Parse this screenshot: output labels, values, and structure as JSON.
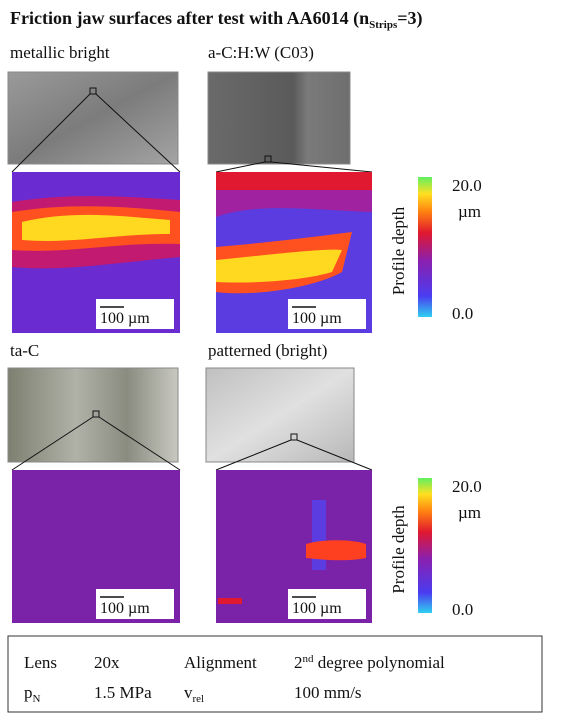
{
  "title": {
    "main": "Friction jaw surfaces after test with AA6014 (n",
    "sub": "Strips",
    "end": "=3)"
  },
  "panels": [
    {
      "label": "metallic bright",
      "scale_bar": "100 µm"
    },
    {
      "label": "a-C:H:W (C03)",
      "scale_bar": "100 µm"
    },
    {
      "label": "ta-C",
      "scale_bar": "100 µm"
    },
    {
      "label": "patterned (bright)",
      "scale_bar": "100 µm"
    }
  ],
  "colorbars": [
    {
      "max": "20.0",
      "unit": "µm",
      "title": "Profile depth",
      "min": "0.0"
    },
    {
      "max": "20.0",
      "unit": "µm",
      "title": "Profile depth",
      "min": "0.0"
    }
  ],
  "settings": {
    "lens_label": "Lens",
    "lens_value": "20x",
    "alignment_label": "Alignment",
    "alignment_value": {
      "number": "2",
      "sup": "nd",
      "text": " degree polynomial"
    },
    "pressure_label": {
      "symbol": "p",
      "sub": "N"
    },
    "pressure_value": "1.5 MPa",
    "velocity_label": {
      "symbol": "v",
      "sub": "rel"
    },
    "velocity_value": "100 mm/s"
  }
}
